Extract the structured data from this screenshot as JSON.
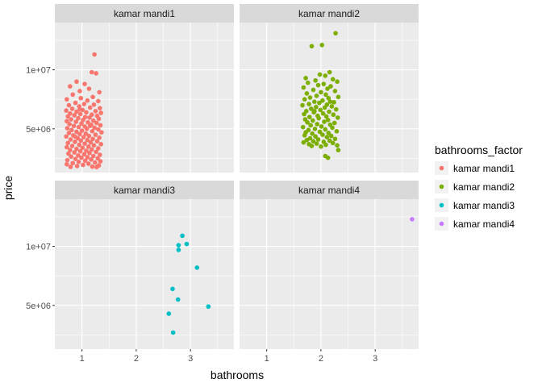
{
  "chart_data": {
    "type": "scatter",
    "xlabel": "bathrooms",
    "ylabel": "price",
    "xlim": [
      0.5,
      3.8
    ],
    "ylim": [
      1300000,
      14000000
    ],
    "x_ticks": [
      1,
      2,
      3
    ],
    "x_tick_labels": [
      "1",
      "2",
      "3"
    ],
    "y_ticks": [
      5000000,
      10000000
    ],
    "y_tick_labels": [
      "5e+06",
      "1e+07"
    ],
    "grid": true,
    "legend": {
      "title": "bathrooms_factor",
      "placement": "right",
      "entries": [
        "kamar mandi1",
        "kamar mandi2",
        "kamar mandi3",
        "kamar mandi4"
      ]
    },
    "colors": {
      "kamar mandi1": "#F8766D",
      "kamar mandi2": "#7CAE00",
      "kamar mandi3": "#00BFC4",
      "kamar mandi4": "#C77CFF"
    },
    "panels": [
      {
        "label": "kamar mandi1",
        "series": "kamar mandi1",
        "points": [
          [
            1.23,
            11300000
          ],
          [
            1.18,
            9800000
          ],
          [
            1.26,
            9700000
          ],
          [
            0.9,
            9000000
          ],
          [
            1.05,
            8800000
          ],
          [
            0.78,
            8600000
          ],
          [
            1.13,
            8400000
          ],
          [
            0.96,
            8200000
          ],
          [
            1.32,
            8100000
          ],
          [
            0.83,
            7900000
          ],
          [
            1.2,
            7700000
          ],
          [
            0.98,
            7600000
          ],
          [
            0.72,
            7500000
          ],
          [
            1.1,
            7400000
          ],
          [
            1.3,
            7350000
          ],
          [
            0.88,
            7200000
          ],
          [
            1.04,
            7100000
          ],
          [
            1.22,
            7050000
          ],
          [
            0.76,
            7000000
          ],
          [
            0.95,
            6900000
          ],
          [
            1.15,
            6800000
          ],
          [
            1.33,
            6750000
          ],
          [
            0.82,
            6700000
          ],
          [
            1.01,
            6600000
          ],
          [
            0.71,
            6550000
          ],
          [
            1.25,
            6500000
          ],
          [
            0.9,
            6450000
          ],
          [
            1.08,
            6400000
          ],
          [
            1.35,
            6350000
          ],
          [
            0.78,
            6300000
          ],
          [
            0.97,
            6250000
          ],
          [
            1.18,
            6200000
          ],
          [
            0.86,
            6150000
          ],
          [
            1.28,
            6100000
          ],
          [
            0.74,
            6050000
          ],
          [
            1.06,
            6000000
          ],
          [
            1.14,
            5950000
          ],
          [
            0.93,
            5900000
          ],
          [
            1.31,
            5850000
          ],
          [
            0.8,
            5800000
          ],
          [
            1.02,
            5750000
          ],
          [
            1.21,
            5700000
          ],
          [
            0.72,
            5650000
          ],
          [
            0.89,
            5600000
          ],
          [
            1.11,
            5550000
          ],
          [
            1.27,
            5500000
          ],
          [
            0.99,
            5450000
          ],
          [
            0.77,
            5400000
          ],
          [
            1.17,
            5350000
          ],
          [
            1.34,
            5300000
          ],
          [
            0.85,
            5250000
          ],
          [
            1.05,
            5200000
          ],
          [
            0.94,
            5150000
          ],
          [
            1.23,
            5100000
          ],
          [
            0.73,
            5050000
          ],
          [
            1.09,
            5000000
          ],
          [
            1.3,
            4950000
          ],
          [
            0.81,
            4900000
          ],
          [
            1.0,
            4850000
          ],
          [
            1.19,
            4800000
          ],
          [
            0.9,
            4750000
          ],
          [
            1.36,
            4700000
          ],
          [
            0.76,
            4650000
          ],
          [
            1.07,
            4600000
          ],
          [
            0.96,
            4550000
          ],
          [
            1.25,
            4500000
          ],
          [
            0.84,
            4450000
          ],
          [
            1.13,
            4400000
          ],
          [
            0.71,
            4350000
          ],
          [
            1.03,
            4300000
          ],
          [
            1.32,
            4250000
          ],
          [
            0.92,
            4200000
          ],
          [
            1.2,
            4150000
          ],
          [
            0.79,
            4100000
          ],
          [
            1.1,
            4050000
          ],
          [
            0.98,
            4000000
          ],
          [
            1.28,
            3950000
          ],
          [
            0.87,
            3900000
          ],
          [
            1.16,
            3850000
          ],
          [
            0.74,
            3800000
          ],
          [
            1.05,
            3750000
          ],
          [
            1.35,
            3700000
          ],
          [
            0.95,
            3650000
          ],
          [
            1.22,
            3600000
          ],
          [
            0.82,
            3550000
          ],
          [
            1.12,
            3500000
          ],
          [
            0.72,
            3450000
          ],
          [
            1.01,
            3400000
          ],
          [
            1.3,
            3350000
          ],
          [
            0.9,
            3300000
          ],
          [
            1.18,
            3250000
          ],
          [
            0.78,
            3200000
          ],
          [
            1.08,
            3150000
          ],
          [
            0.97,
            3100000
          ],
          [
            1.26,
            3050000
          ],
          [
            0.86,
            3000000
          ],
          [
            1.14,
            2950000
          ],
          [
            0.75,
            2900000
          ],
          [
            1.04,
            2850000
          ],
          [
            1.33,
            2800000
          ],
          [
            0.93,
            2750000
          ],
          [
            1.21,
            2700000
          ],
          [
            0.8,
            2650000
          ],
          [
            1.1,
            2600000
          ],
          [
            0.99,
            2550000
          ],
          [
            1.29,
            2500000
          ],
          [
            0.88,
            2450000
          ],
          [
            1.17,
            2400000
          ],
          [
            0.73,
            2350000
          ],
          [
            1.06,
            2300000
          ],
          [
            1.34,
            2250000
          ],
          [
            0.94,
            2200000
          ],
          [
            1.24,
            2150000
          ],
          [
            0.83,
            2100000
          ],
          [
            1.12,
            2050000
          ],
          [
            0.72,
            2000000
          ],
          [
            1.02,
            1950000
          ],
          [
            1.31,
            1900000
          ],
          [
            0.91,
            1850000
          ],
          [
            1.19,
            1800000
          ],
          [
            0.79,
            1780000
          ],
          [
            1.27,
            1760000
          ],
          [
            0.96,
            6650000
          ],
          [
            1.15,
            5250000
          ],
          [
            0.87,
            4350000
          ]
        ]
      },
      {
        "label": "kamar mandi2",
        "series": "kamar mandi2",
        "points": [
          [
            2.27,
            13100000
          ],
          [
            2.02,
            12100000
          ],
          [
            1.83,
            12000000
          ],
          [
            2.16,
            9800000
          ],
          [
            1.98,
            9600000
          ],
          [
            2.08,
            9500000
          ],
          [
            1.72,
            9300000
          ],
          [
            2.22,
            9200000
          ],
          [
            1.9,
            9100000
          ],
          [
            2.3,
            9000000
          ],
          [
            1.76,
            8900000
          ],
          [
            2.05,
            8800000
          ],
          [
            1.95,
            8700000
          ],
          [
            2.18,
            8600000
          ],
          [
            1.68,
            8500000
          ],
          [
            2.12,
            8400000
          ],
          [
            1.86,
            8300000
          ],
          [
            2.26,
            8200000
          ],
          [
            2.0,
            8100000
          ],
          [
            1.74,
            8000000
          ],
          [
            2.09,
            7900000
          ],
          [
            1.92,
            7800000
          ],
          [
            2.32,
            7700000
          ],
          [
            1.8,
            7650000
          ],
          [
            2.14,
            7600000
          ],
          [
            1.7,
            7500000
          ],
          [
            2.03,
            7400000
          ],
          [
            1.88,
            7300000
          ],
          [
            2.24,
            7250000
          ],
          [
            1.97,
            7200000
          ],
          [
            1.78,
            7100000
          ],
          [
            2.11,
            7050000
          ],
          [
            1.66,
            7000000
          ],
          [
            2.2,
            6900000
          ],
          [
            1.91,
            6850000
          ],
          [
            2.07,
            6800000
          ],
          [
            1.82,
            6700000
          ],
          [
            2.28,
            6650000
          ],
          [
            1.99,
            6600000
          ],
          [
            1.73,
            6500000
          ],
          [
            2.15,
            6450000
          ],
          [
            1.87,
            6400000
          ],
          [
            2.04,
            6300000
          ],
          [
            1.69,
            6250000
          ],
          [
            2.23,
            6200000
          ],
          [
            1.94,
            6100000
          ],
          [
            2.1,
            6050000
          ],
          [
            1.79,
            6000000
          ],
          [
            2.31,
            5950000
          ],
          [
            1.96,
            5900000
          ],
          [
            1.71,
            5800000
          ],
          [
            2.13,
            5750000
          ],
          [
            1.85,
            5700000
          ],
          [
            2.06,
            5600000
          ],
          [
            1.75,
            5550000
          ],
          [
            2.25,
            5500000
          ],
          [
            1.93,
            5400000
          ],
          [
            2.17,
            5350000
          ],
          [
            1.81,
            5300000
          ],
          [
            2.01,
            5200000
          ],
          [
            1.67,
            5150000
          ],
          [
            2.21,
            5100000
          ],
          [
            1.89,
            5000000
          ],
          [
            2.08,
            4950000
          ],
          [
            1.77,
            4900000
          ],
          [
            2.29,
            4800000
          ],
          [
            1.98,
            4750000
          ],
          [
            1.72,
            4700000
          ],
          [
            2.14,
            4650000
          ],
          [
            1.84,
            4600000
          ],
          [
            2.03,
            4500000
          ],
          [
            1.7,
            4450000
          ],
          [
            2.19,
            4400000
          ],
          [
            1.9,
            4350000
          ],
          [
            2.11,
            4300000
          ],
          [
            1.8,
            4200000
          ],
          [
            2.26,
            4150000
          ],
          [
            1.95,
            4100000
          ],
          [
            1.74,
            4050000
          ],
          [
            2.16,
            4000000
          ],
          [
            1.86,
            3950000
          ],
          [
            2.05,
            3900000
          ],
          [
            1.68,
            3850000
          ],
          [
            2.22,
            3800000
          ],
          [
            1.92,
            3750000
          ],
          [
            1.78,
            3700000
          ],
          [
            2.09,
            3650000
          ],
          [
            2.3,
            3600000
          ],
          [
            1.83,
            3550000
          ],
          [
            2.0,
            3500000
          ],
          [
            2.32,
            3200000
          ],
          [
            2.08,
            2700000
          ],
          [
            2.13,
            2550000
          ],
          [
            1.88,
            6500000
          ],
          [
            2.17,
            7300000
          ]
        ]
      },
      {
        "label": "kamar mandi3",
        "series": "kamar mandi3",
        "points": [
          [
            2.85,
            10900000
          ],
          [
            2.93,
            10200000
          ],
          [
            2.78,
            10100000
          ],
          [
            2.78,
            9700000
          ],
          [
            3.12,
            8200000
          ],
          [
            2.67,
            6400000
          ],
          [
            2.77,
            5500000
          ],
          [
            3.33,
            4900000
          ],
          [
            2.6,
            4300000
          ],
          [
            2.68,
            2700000
          ]
        ]
      },
      {
        "label": "kamar mandi4",
        "series": "kamar mandi4",
        "points": [
          [
            3.68,
            12300000
          ]
        ]
      }
    ]
  }
}
